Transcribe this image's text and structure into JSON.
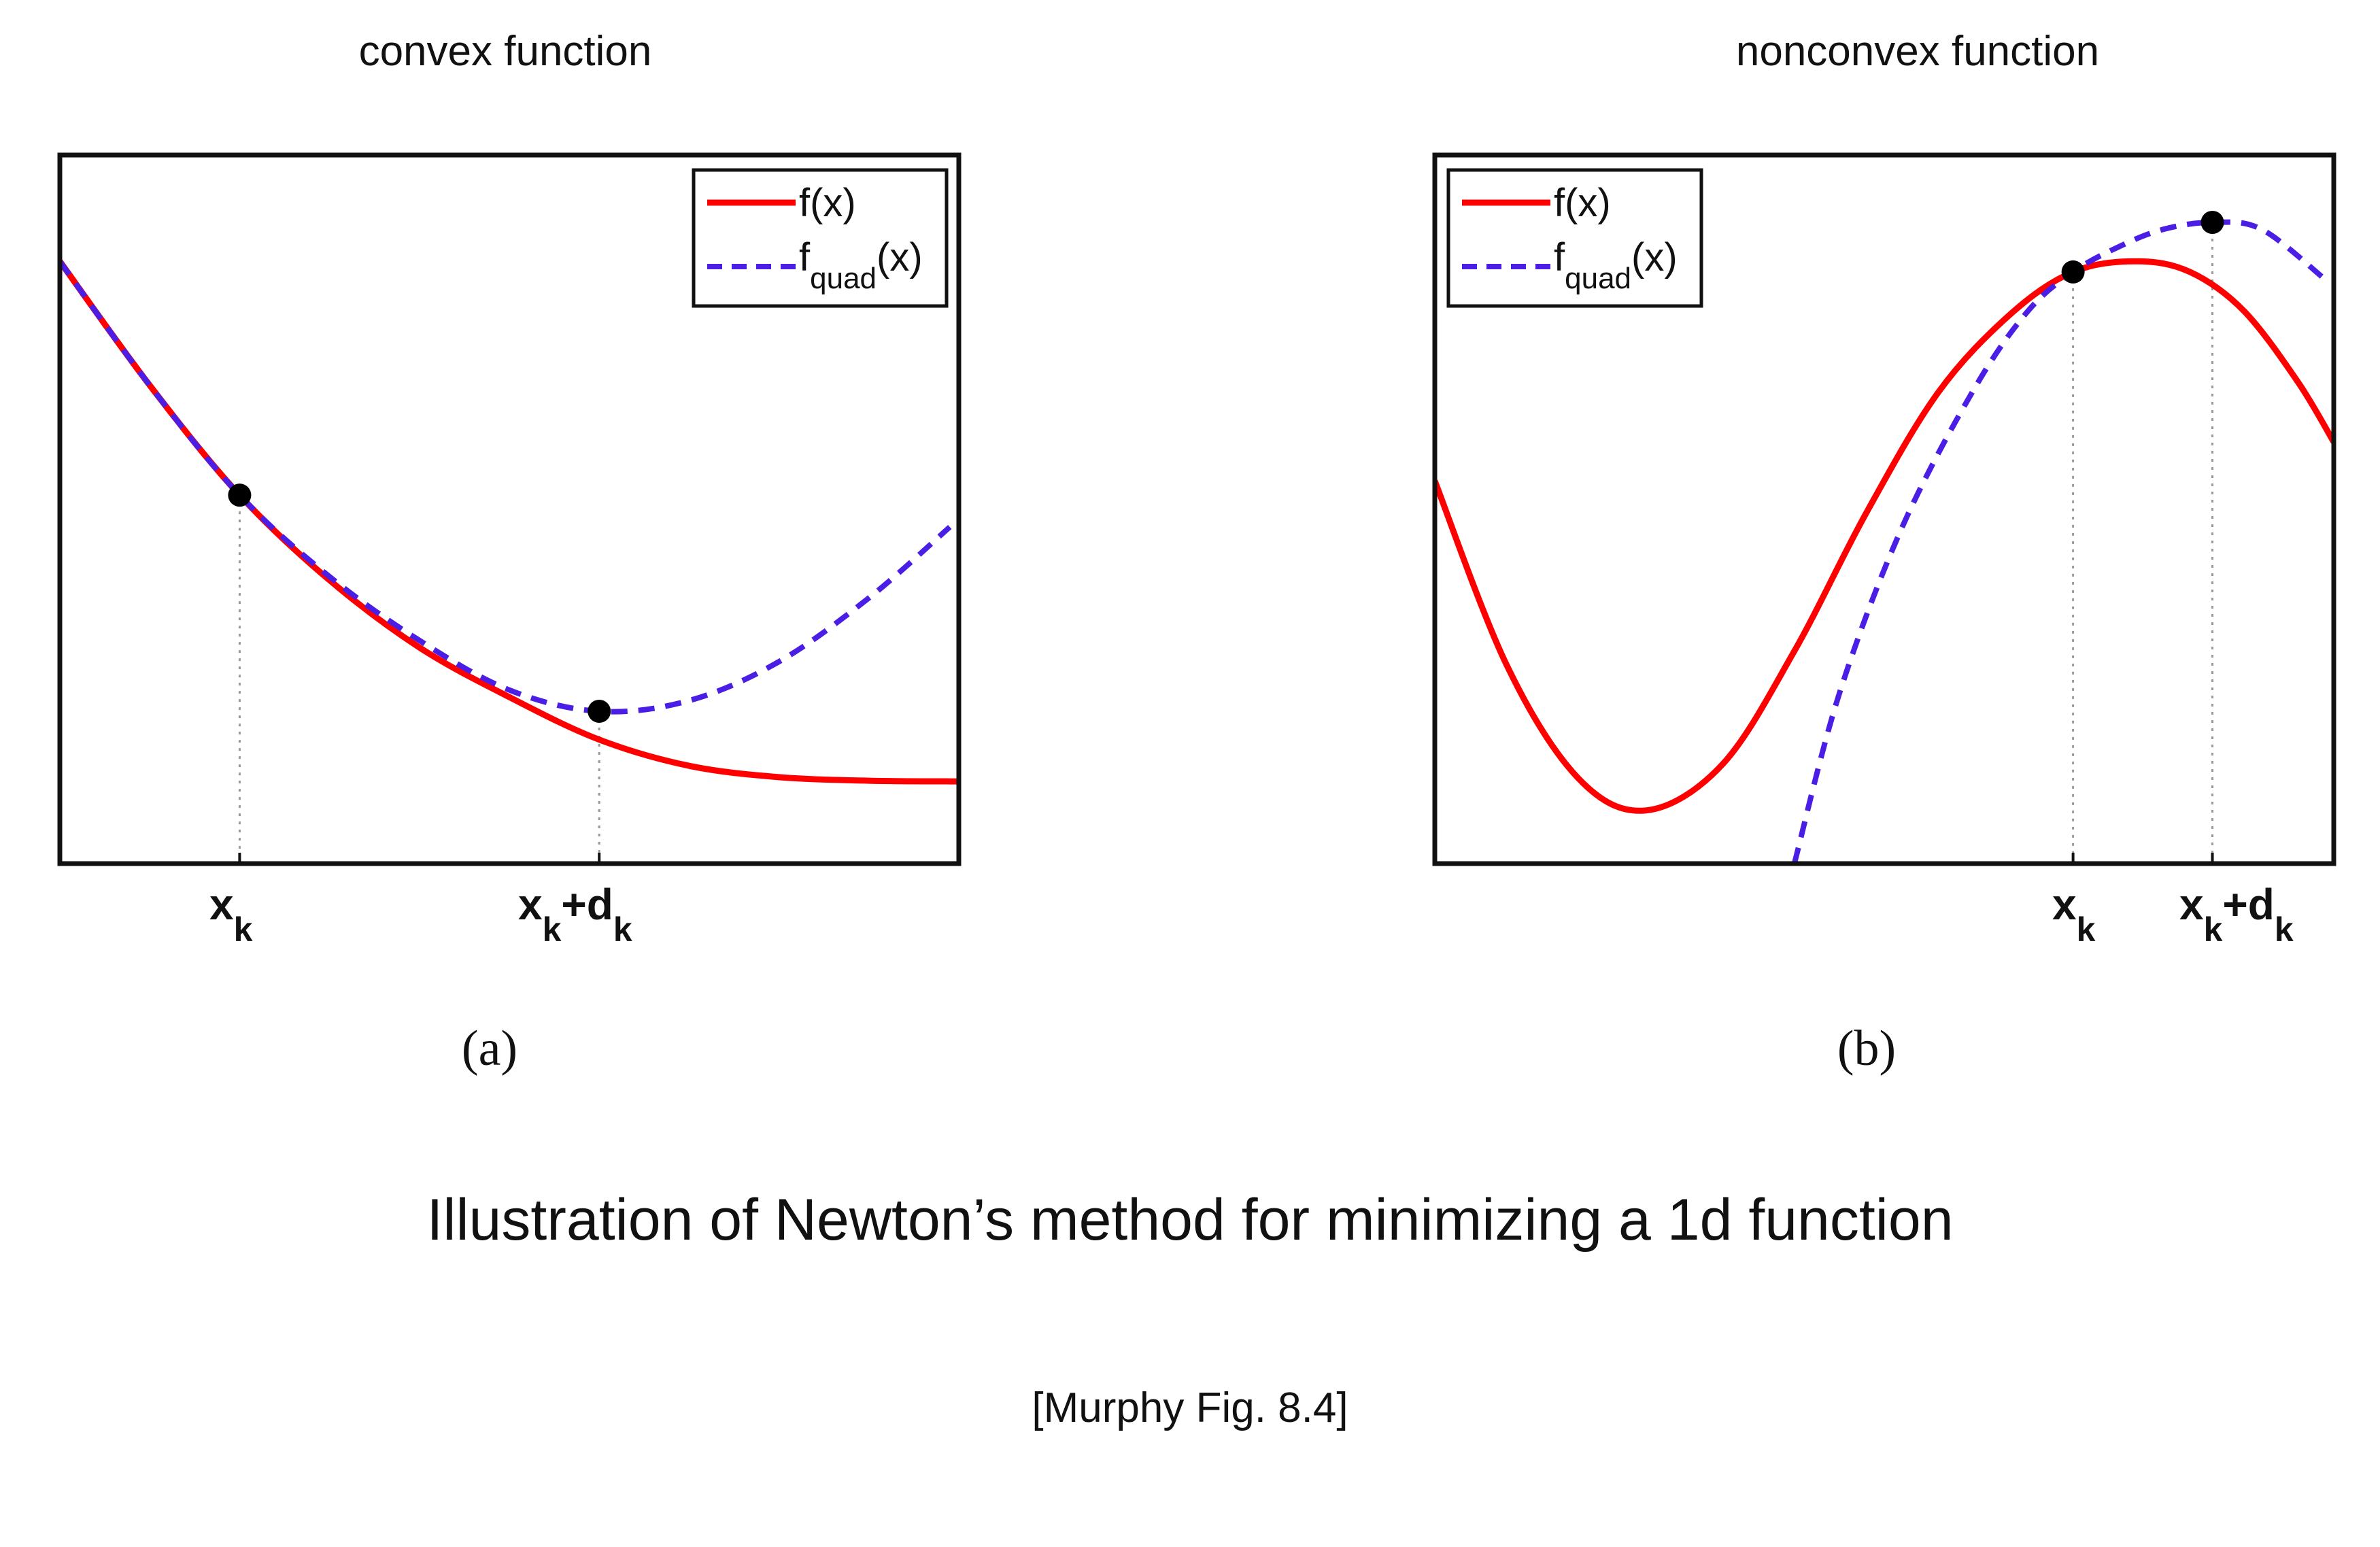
{
  "panels": {
    "a": {
      "title": "convex function",
      "sublabel": "(a)"
    },
    "b": {
      "title": "nonconvex function",
      "sublabel": "(b)"
    }
  },
  "caption": "Illustration of Newton’s method for minimizing a 1d function",
  "source": "[Murphy Fig. 8.4]",
  "legend": {
    "f_label": "f(x)",
    "quad_label_main": "f",
    "quad_label_sub": "quad",
    "quad_label_tail": "(x)"
  },
  "ticks": {
    "xk_main": "x",
    "xk_sub": "k",
    "xkdk_main": "x",
    "xkdk_sub1": "k",
    "xkdk_plus": "+d",
    "xkdk_sub2": "k"
  },
  "colors": {
    "f": "#ff0000",
    "quad": "#4b1ee6",
    "axis": "#111111"
  },
  "chart_data": [
    {
      "type": "line",
      "title": "convex function",
      "xlim": [
        0,
        10
      ],
      "ylim": [
        0,
        10
      ],
      "grid": false,
      "legend_position": "top-right",
      "x_ticks": [
        {
          "x": 2.0,
          "label": "x_k"
        },
        {
          "x": 6.0,
          "label": "x_k+d_k"
        }
      ],
      "series": [
        {
          "name": "f(x)",
          "style": "solid",
          "x": [
            0,
            1,
            2,
            3,
            4,
            5,
            6,
            7,
            8,
            9,
            10
          ],
          "y": [
            8.5,
            6.75,
            5.2,
            4.0,
            3.05,
            2.35,
            1.75,
            1.38,
            1.22,
            1.17,
            1.16
          ]
        },
        {
          "name": "f_quad(x)",
          "style": "dashed",
          "x": [
            0,
            1,
            2,
            3,
            4,
            5,
            6,
            7,
            8,
            9,
            9.9
          ],
          "y": [
            8.5,
            6.75,
            5.2,
            4.05,
            3.15,
            2.45,
            2.15,
            2.3,
            2.85,
            3.75,
            4.75
          ]
        }
      ],
      "points": [
        {
          "x": 2.0,
          "y": 5.2
        },
        {
          "x": 6.0,
          "y": 2.15
        }
      ]
    },
    {
      "type": "line",
      "title": "nonconvex function",
      "xlim": [
        0,
        10
      ],
      "ylim": [
        0,
        10
      ],
      "grid": false,
      "legend_position": "top-left",
      "x_ticks": [
        {
          "x": 7.1,
          "label": "x_k"
        },
        {
          "x": 8.65,
          "label": "x_k+d_k"
        }
      ],
      "series": [
        {
          "name": "f(x)",
          "style": "solid",
          "x": [
            0,
            0.8,
            1.6,
            2.35,
            3.2,
            4.0,
            4.8,
            5.6,
            6.4,
            7.1,
            7.8,
            8.4,
            9.0,
            9.6,
            10.0
          ],
          "y": [
            5.4,
            2.8,
            1.2,
            0.75,
            1.4,
            3.0,
            4.95,
            6.65,
            7.75,
            8.35,
            8.5,
            8.35,
            7.8,
            6.8,
            5.95
          ]
        },
        {
          "name": "f_quad(x)",
          "style": "dashed",
          "x": [
            4.0,
            4.5,
            5.2,
            6.0,
            6.6,
            7.1,
            7.6,
            8.1,
            8.65,
            9.2,
            9.9
          ],
          "y": [
            0.0,
            2.4,
            4.75,
            6.7,
            7.8,
            8.35,
            8.7,
            8.95,
            9.05,
            8.95,
            8.25
          ]
        }
      ],
      "points": [
        {
          "x": 7.1,
          "y": 8.35
        },
        {
          "x": 8.65,
          "y": 9.05
        }
      ]
    }
  ]
}
